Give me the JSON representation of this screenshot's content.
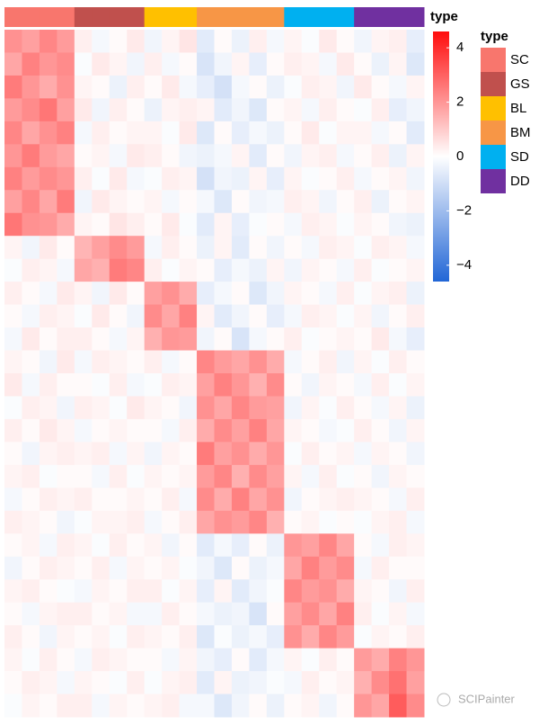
{
  "chart_data": {
    "type": "heatmap",
    "column_annotation": [
      "SC",
      "SC",
      "SC",
      "SC",
      "GS",
      "GS",
      "GS",
      "GS",
      "BL",
      "BL",
      "BL",
      "BM",
      "BM",
      "BM",
      "BM",
      "BM",
      "SD",
      "SD",
      "SD",
      "SD",
      "DD",
      "DD",
      "DD",
      "DD"
    ],
    "values": [
      [
        2.1,
        1.8,
        2.3,
        1.9,
        0.3,
        -0.2,
        0.1,
        0.4,
        -0.3,
        0.2,
        0.5,
        -0.6,
        0.1,
        -0.4,
        0.3,
        -0.2,
        0.2,
        -0.1,
        0.4,
        0.1,
        -0.3,
        0.2,
        0.3,
        -0.5
      ],
      [
        1.7,
        2.4,
        2.0,
        2.2,
        -0.1,
        0.4,
        0.2,
        -0.3,
        0.3,
        -0.2,
        0.1,
        -0.8,
        -0.3,
        0.2,
        -0.5,
        0.1,
        0.3,
        0.2,
        -0.2,
        0.4,
        0.1,
        -0.4,
        0.2,
        -0.7
      ],
      [
        2.5,
        2.0,
        1.6,
        2.1,
        0.2,
        0.1,
        -0.4,
        0.3,
        0.1,
        0.4,
        -0.2,
        -0.5,
        -0.9,
        -0.2,
        0.1,
        -0.4,
        -0.1,
        0.3,
        0.2,
        -0.3,
        0.4,
        0.1,
        -0.2,
        0.2
      ],
      [
        1.9,
        2.2,
        2.6,
        1.8,
        0.4,
        -0.3,
        0.3,
        0.1,
        -0.4,
        0.2,
        0.3,
        0.2,
        -0.6,
        -0.3,
        -0.7,
        0.1,
        0.2,
        -0.2,
        0.3,
        0.1,
        -0.1,
        0.3,
        -0.5,
        -0.3
      ],
      [
        2.3,
        1.7,
        2.1,
        2.4,
        -0.2,
        0.3,
        0.1,
        0.2,
        0.2,
        -0.1,
        0.4,
        -0.7,
        0.1,
        -0.5,
        -0.2,
        -0.4,
        0.1,
        0.4,
        -0.1,
        0.2,
        0.2,
        -0.2,
        0.1,
        -0.6
      ],
      [
        2.0,
        2.5,
        1.9,
        1.7,
        0.1,
        0.2,
        -0.2,
        0.4,
        0.3,
        0.1,
        -0.3,
        -0.4,
        -0.2,
        0.2,
        -0.6,
        0.1,
        -0.3,
        0.2,
        0.3,
        -0.2,
        0.1,
        0.3,
        -0.4,
        0.2
      ],
      [
        2.4,
        1.9,
        2.2,
        2.0,
        0.3,
        -0.1,
        0.4,
        -0.2,
        -0.1,
        0.3,
        0.2,
        -0.9,
        -0.3,
        -0.4,
        0.2,
        -0.5,
        0.2,
        -0.1,
        0.1,
        0.3,
        -0.2,
        0.1,
        0.2,
        -0.3
      ],
      [
        1.8,
        2.3,
        1.7,
        2.5,
        -0.3,
        0.4,
        0.2,
        0.1,
        0.2,
        -0.2,
        0.1,
        -0.2,
        -0.7,
        0.1,
        -0.3,
        -0.2,
        0.3,
        0.2,
        -0.3,
        0.1,
        0.3,
        -0.4,
        0.1,
        0.2
      ],
      [
        2.6,
        2.1,
        2.0,
        1.6,
        0.2,
        0.1,
        0.5,
        0.3,
        0.1,
        0.4,
        -0.1,
        -0.6,
        0.2,
        -0.5,
        -0.1,
        0.1,
        -0.2,
        0.3,
        0.2,
        -0.1,
        0.2,
        0.1,
        -0.3,
        -0.4
      ],
      [
        0.2,
        -0.3,
        0.4,
        0.1,
        1.4,
        1.8,
        2.2,
        1.9,
        -0.2,
        0.3,
        0.1,
        -0.4,
        0.2,
        -0.6,
        0.1,
        -0.3,
        0.1,
        -0.2,
        0.3,
        0.2,
        -0.1,
        0.3,
        0.2,
        -0.2
      ],
      [
        -0.1,
        0.3,
        0.2,
        -0.2,
        1.7,
        1.5,
        2.5,
        2.3,
        0.3,
        -0.1,
        0.2,
        0.1,
        -0.5,
        -0.2,
        -0.4,
        0.2,
        -0.3,
        0.2,
        0.1,
        -0.2,
        0.3,
        -0.1,
        0.1,
        0.2
      ],
      [
        0.3,
        0.1,
        -0.2,
        0.4,
        0.2,
        -0.3,
        0.4,
        0.1,
        1.8,
        2.1,
        1.6,
        -0.5,
        -0.2,
        0.1,
        -0.7,
        -0.3,
        0.2,
        0.1,
        -0.2,
        0.3,
        -0.1,
        0.2,
        0.3,
        -0.4
      ],
      [
        0.1,
        -0.2,
        0.3,
        0.2,
        -0.1,
        0.4,
        0.1,
        -0.3,
        2.2,
        1.7,
        2.4,
        0.2,
        -0.6,
        -0.3,
        0.1,
        -0.5,
        -0.2,
        0.3,
        0.2,
        -0.1,
        0.2,
        -0.3,
        0.1,
        0.3
      ],
      [
        -0.2,
        0.4,
        0.1,
        0.3,
        0.3,
        0.1,
        -0.2,
        0.2,
        1.5,
        2.0,
        1.9,
        -0.3,
        0.1,
        -0.8,
        -0.2,
        0.1,
        0.3,
        -0.1,
        0.1,
        0.2,
        0.1,
        0.4,
        -0.2,
        -0.5
      ],
      [
        0.2,
        0.1,
        -0.3,
        0.4,
        -0.2,
        0.3,
        0.2,
        0.1,
        0.3,
        -0.2,
        0.1,
        2.3,
        1.9,
        1.7,
        2.1,
        1.6,
        -0.2,
        0.1,
        0.3,
        -0.3,
        0.2,
        -0.1,
        0.3,
        0.1
      ],
      [
        0.4,
        -0.2,
        0.3,
        0.1,
        0.1,
        -0.1,
        0.3,
        -0.2,
        -0.1,
        0.3,
        0.2,
        1.8,
        2.4,
        2.0,
        1.5,
        2.2,
        0.1,
        -0.3,
        0.2,
        0.1,
        -0.2,
        0.3,
        -0.1,
        0.2
      ],
      [
        -0.1,
        0.3,
        0.2,
        -0.3,
        0.3,
        0.2,
        -0.1,
        0.4,
        0.2,
        0.1,
        -0.3,
        2.1,
        1.7,
        2.3,
        1.9,
        1.8,
        -0.3,
        0.2,
        -0.1,
        0.3,
        0.1,
        -0.2,
        0.2,
        -0.4
      ],
      [
        0.3,
        0.1,
        0.4,
        0.2,
        -0.2,
        0.1,
        0.2,
        0.1,
        0.1,
        -0.2,
        0.3,
        1.6,
        2.2,
        1.8,
        2.4,
        1.7,
        0.2,
        0.1,
        -0.2,
        -0.1,
        0.3,
        0.1,
        -0.3,
        0.2
      ],
      [
        0.1,
        -0.3,
        0.2,
        0.3,
        0.2,
        0.3,
        -0.2,
        0.2,
        -0.3,
        0.2,
        0.1,
        2.5,
        1.8,
        2.1,
        1.6,
        2.0,
        -0.1,
        0.3,
        0.1,
        0.2,
        -0.2,
        0.2,
        0.1,
        -0.3
      ],
      [
        0.2,
        0.3,
        -0.1,
        0.1,
        0.1,
        -0.2,
        0.3,
        -0.1,
        0.2,
        0.1,
        0.2,
        1.9,
        2.3,
        1.5,
        2.2,
        1.8,
        0.2,
        -0.2,
        0.3,
        -0.1,
        0.1,
        -0.3,
        0.2,
        0.1
      ],
      [
        -0.2,
        0.1,
        0.3,
        0.2,
        0.3,
        0.1,
        0.1,
        0.2,
        0.1,
        0.3,
        -0.2,
        2.2,
        1.6,
        2.4,
        1.7,
        2.1,
        -0.3,
        0.1,
        0.2,
        0.3,
        0.2,
        0.1,
        -0.2,
        0.3
      ],
      [
        0.3,
        0.2,
        0.1,
        -0.3,
        -0.1,
        0.2,
        0.2,
        0.3,
        -0.2,
        0.1,
        0.3,
        1.7,
        2.1,
        1.9,
        2.3,
        1.5,
        0.1,
        0.2,
        -0.1,
        0.1,
        -0.1,
        0.2,
        0.3,
        -0.2
      ],
      [
        0.1,
        0.2,
        -0.2,
        0.3,
        0.2,
        -0.1,
        0.3,
        0.1,
        0.2,
        -0.3,
        0.1,
        -0.6,
        -0.2,
        -0.5,
        0.1,
        -0.4,
        2.0,
        1.8,
        2.3,
        1.7,
        0.1,
        -0.2,
        0.3,
        0.2
      ],
      [
        -0.3,
        0.1,
        0.3,
        0.2,
        0.1,
        0.3,
        -0.2,
        0.2,
        0.1,
        0.2,
        -0.1,
        -0.3,
        -0.7,
        0.1,
        -0.4,
        -0.2,
        1.7,
        2.4,
        1.9,
        2.2,
        -0.2,
        0.3,
        0.1,
        0.1
      ],
      [
        0.2,
        0.3,
        0.1,
        -0.1,
        -0.2,
        0.2,
        0.1,
        0.3,
        0.3,
        -0.1,
        0.2,
        -0.5,
        0.2,
        -0.6,
        -0.3,
        -0.1,
        2.3,
        1.9,
        2.1,
        1.6,
        0.2,
        0.1,
        -0.3,
        0.3
      ],
      [
        0.1,
        -0.2,
        0.2,
        0.3,
        0.3,
        0.1,
        0.2,
        -0.2,
        -0.2,
        0.3,
        0.1,
        -0.2,
        -0.4,
        -0.3,
        -0.8,
        0.1,
        1.8,
        2.2,
        1.7,
        2.4,
        0.3,
        -0.1,
        0.2,
        -0.2
      ],
      [
        0.3,
        0.1,
        -0.3,
        0.2,
        0.1,
        0.2,
        -0.1,
        0.3,
        0.2,
        0.1,
        0.3,
        -0.7,
        -0.1,
        -0.4,
        -0.2,
        -0.5,
        2.1,
        1.6,
        2.3,
        1.9,
        -0.1,
        0.2,
        0.1,
        0.3
      ],
      [
        0.2,
        -0.1,
        0.3,
        0.1,
        -0.2,
        0.3,
        0.2,
        0.1,
        0.1,
        -0.2,
        0.2,
        -0.3,
        -0.5,
        0.1,
        -0.6,
        -0.2,
        0.2,
        -0.1,
        0.3,
        0.1,
        1.9,
        1.6,
        2.4,
        2.0
      ],
      [
        0.1,
        0.3,
        0.2,
        -0.2,
        0.2,
        0.1,
        -0.1,
        0.3,
        -0.1,
        0.2,
        0.3,
        -0.6,
        0.2,
        -0.4,
        -0.3,
        -0.1,
        -0.2,
        0.3,
        0.1,
        0.2,
        1.5,
        2.2,
        2.7,
        1.8
      ],
      [
        -0.1,
        0.2,
        0.1,
        0.3,
        0.3,
        -0.2,
        0.2,
        0.1,
        0.2,
        0.3,
        -0.2,
        -0.2,
        -0.7,
        -0.3,
        0.1,
        -0.4,
        0.1,
        0.2,
        -0.3,
        0.1,
        2.0,
        1.7,
        3.1,
        2.2
      ]
    ],
    "colorbar_title": "type",
    "colorscale": {
      "low": "#2166d6",
      "mid": "#ffffff",
      "high": "#ff0d0d"
    },
    "clim": [
      -4.6,
      4.6
    ],
    "cticks": [
      {
        "value": -4,
        "label": "−4"
      },
      {
        "value": -2,
        "label": "−2"
      },
      0,
      2,
      4
    ],
    "legend": {
      "title": "type",
      "items": [
        {
          "name": "SC",
          "color": "#f8766d"
        },
        {
          "name": "GS",
          "color": "#c0504d"
        },
        {
          "name": "BL",
          "color": "#ffc000"
        },
        {
          "name": "BM",
          "color": "#f79646"
        },
        {
          "name": "SD",
          "color": "#00b0f0"
        },
        {
          "name": "DD",
          "color": "#7030a0"
        }
      ]
    },
    "watermark": "SCIPainter"
  }
}
